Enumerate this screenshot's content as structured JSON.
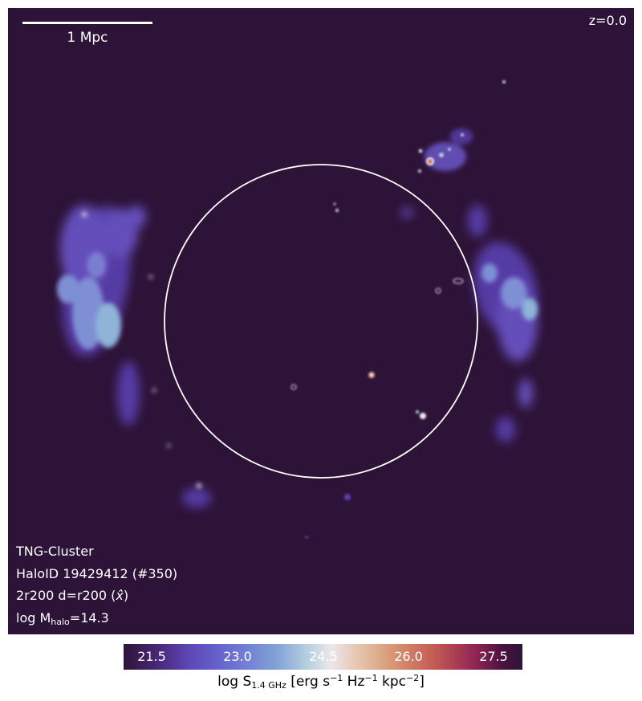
{
  "panel": {
    "scalebar_label": "1 Mpc",
    "redshift": "z=0.0",
    "info": {
      "line1": "TNG-Cluster",
      "line2": "HaloID 19429412 (#350)",
      "line3_prefix": "2r200 d=r200 (",
      "line3_axis": "x̂",
      "line3_suffix": ")",
      "line4_prefix": "log M",
      "line4_sub": "halo",
      "line4_suffix": "=14.3"
    }
  },
  "colorbar": {
    "ticks": [
      "21.5",
      "23.0",
      "24.5",
      "26.0",
      "27.5"
    ],
    "label_prefix": "log S",
    "label_sub": "1.4 GHz",
    "label_p1": " [erg s",
    "label_sup1": "−1",
    "label_p2": " Hz",
    "label_sup2": "−1",
    "label_p3": " kpc",
    "label_sup3": "−2",
    "label_p4": "]"
  },
  "colors": {
    "background": "#2e1339",
    "circle": "#ffffff",
    "emission_low": "#6a55c8",
    "emission_mid": "#8fb4d8",
    "emission_high": "#d98b6c"
  }
}
